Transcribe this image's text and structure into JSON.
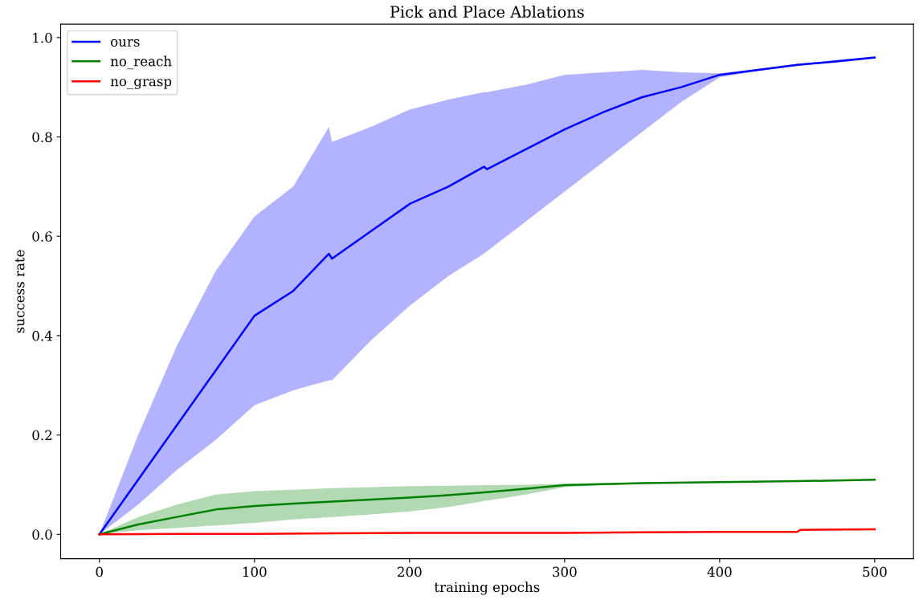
{
  "chart_data": {
    "type": "line",
    "title": "Pick and Place Ablations",
    "xlabel": "training epochs",
    "ylabel": "success rate",
    "series": [
      {
        "name": "ours",
        "color": "#0000ff",
        "x": [
          0,
          25,
          50,
          75,
          100,
          125,
          148,
          150,
          175,
          200,
          225,
          248,
          250,
          275,
          300,
          325,
          350,
          375,
          400,
          425,
          450,
          475,
          500
        ],
        "values": [
          0,
          0.11,
          0.22,
          0.33,
          0.44,
          0.49,
          0.565,
          0.555,
          0.61,
          0.665,
          0.7,
          0.74,
          0.735,
          0.775,
          0.815,
          0.85,
          0.88,
          0.9,
          0.925,
          0.935,
          0.945,
          0.952,
          0.96
        ],
        "upper": [
          0,
          0.2,
          0.38,
          0.53,
          0.64,
          0.7,
          0.82,
          0.79,
          0.82,
          0.855,
          0.875,
          0.89,
          0.89,
          0.905,
          0.925,
          0.93,
          0.935,
          0.93,
          0.928,
          0.937,
          0.947,
          0.955,
          0.962
        ],
        "lower": [
          0,
          0.06,
          0.13,
          0.19,
          0.26,
          0.29,
          0.31,
          0.31,
          0.39,
          0.46,
          0.52,
          0.565,
          0.57,
          0.63,
          0.69,
          0.75,
          0.81,
          0.87,
          0.92,
          0.933,
          0.943,
          0.95,
          0.958
        ]
      },
      {
        "name": "no_reach",
        "color": "#008000",
        "x": [
          0,
          25,
          50,
          75,
          100,
          125,
          150,
          175,
          200,
          225,
          250,
          275,
          300,
          325,
          350,
          400,
          450,
          500
        ],
        "values": [
          0,
          0.02,
          0.035,
          0.05,
          0.057,
          0.062,
          0.066,
          0.07,
          0.074,
          0.079,
          0.085,
          0.092,
          0.099,
          0.101,
          0.103,
          0.105,
          0.107,
          0.11
        ],
        "upper": [
          0,
          0.035,
          0.06,
          0.08,
          0.087,
          0.09,
          0.093,
          0.095,
          0.097,
          0.098,
          0.099,
          0.1,
          0.102,
          0.103,
          0.104,
          0.106,
          0.108,
          0.111
        ],
        "lower": [
          0,
          0.008,
          0.013,
          0.018,
          0.023,
          0.03,
          0.035,
          0.04,
          0.046,
          0.055,
          0.068,
          0.08,
          0.095,
          0.099,
          0.102,
          0.104,
          0.106,
          0.109
        ]
      },
      {
        "name": "no_grasp",
        "color": "#ff0000",
        "x": [
          0,
          50,
          100,
          150,
          200,
          250,
          300,
          350,
          400,
          450,
          452,
          500
        ],
        "values": [
          0,
          0.001,
          0.001,
          0.002,
          0.003,
          0.003,
          0.003,
          0.004,
          0.005,
          0.005,
          0.009,
          0.01
        ]
      }
    ],
    "xlim": [
      -25,
      525
    ],
    "ylim": [
      -0.049,
      1.027
    ],
    "xticks": [
      0,
      100,
      200,
      300,
      400,
      500
    ],
    "yticks": [
      {
        "value": 0,
        "label": "0.0"
      },
      {
        "value": 0.2,
        "label": "0.2"
      },
      {
        "value": 0.4,
        "label": "0.4"
      },
      {
        "value": 0.6,
        "label": "0.6"
      },
      {
        "value": 0.8,
        "label": "0.8"
      },
      {
        "value": 1.0,
        "label": "1.0"
      }
    ],
    "legend": "top left",
    "grid": false,
    "marker": "none",
    "line_style": "solid"
  }
}
